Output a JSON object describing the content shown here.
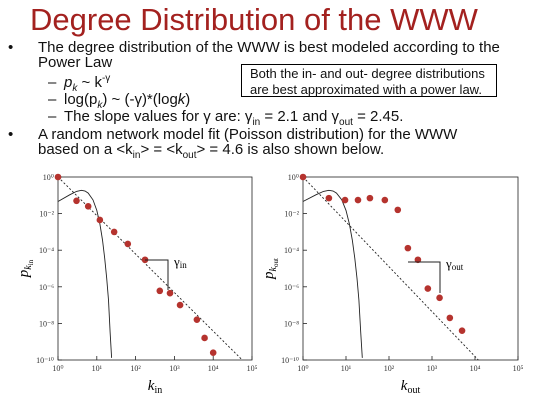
{
  "title": "Degree Distribution of the WWW",
  "bullets": [
    {
      "text": [
        "The degree distribution of the WWW is best modeled according to the Power Law"
      ],
      "sub": [
        [
          "p",
          "k",
          " ~ k",
          "-γ"
        ],
        [
          "log(p",
          "k",
          ") ~ (-γ)*(log",
          "k",
          ")"
        ],
        [
          "The slope values for γ are: γ",
          "in",
          " = 2.1 and γ",
          "out",
          " = 2.45."
        ]
      ]
    },
    {
      "text": [
        "A random network model fit (Poisson distribution) for the WWW based on a <k",
        "in",
        "> = <k",
        "out",
        "> = 4.6 is also shown below."
      ]
    }
  ],
  "callout": "Both the in- and out- degree distributions are best approximated with a power law.",
  "chart_data": [
    {
      "type": "scatter",
      "log_scale": true,
      "color": "#b5332e",
      "xlim": [
        1,
        100000
      ],
      "ylim": [
        1e-10,
        1
      ],
      "xticks": [
        {
          "value": 1,
          "label": "10⁰"
        },
        {
          "value": 10,
          "label": "10¹"
        },
        {
          "value": 100,
          "label": "10²"
        },
        {
          "value": 1000,
          "label": "10³"
        },
        {
          "value": 10000,
          "label": "10⁴"
        },
        {
          "value": 100000,
          "label": "10⁵"
        }
      ],
      "yticks": [
        {
          "value": 1,
          "label": "10⁰"
        },
        {
          "value": 0.01,
          "label": "10⁻²"
        },
        {
          "value": 0.0001,
          "label": "10⁻⁴"
        },
        {
          "value": 1e-06,
          "label": "10⁻⁶"
        },
        {
          "value": 1e-08,
          "label": "10⁻⁸"
        },
        {
          "value": 1e-10,
          "label": "10⁻¹⁰"
        }
      ],
      "xlabel": [
        "k",
        "in"
      ],
      "ylabel": [
        "p",
        "k",
        "in"
      ],
      "annotation": [
        "γ",
        "in"
      ],
      "x": [
        1,
        3,
        6,
        12,
        28,
        63,
        175,
        420,
        770,
        1400,
        3800,
        6000,
        10000
      ],
      "values": [
        1,
        0.05,
        0.025,
        0.0045,
        0.001,
        0.00022,
        3e-05,
        6e-07,
        4.5e-07,
        1e-07,
        1.6e-08,
        1.6e-09,
        2.5e-10
      ],
      "fit": {
        "x": [
          1,
          56234
        ],
        "values": [
          1,
          1e-10
        ]
      },
      "poisson": {
        "x": [
          1,
          2,
          3,
          4,
          5,
          6,
          8,
          10,
          12,
          14,
          16,
          18,
          20,
          22,
          24
        ],
        "values": [
          0.046,
          0.106,
          0.163,
          0.187,
          0.172,
          0.132,
          0.056,
          0.015,
          0.0027,
          0.00036,
          3.6e-05,
          2.9e-06,
          1.9e-07,
          3.4e-09,
          1.3e-10
        ]
      }
    },
    {
      "type": "scatter",
      "log_scale": true,
      "color": "#b5332e",
      "xlim": [
        1,
        100000
      ],
      "ylim": [
        1e-10,
        1
      ],
      "xticks": [
        {
          "value": 1,
          "label": "10⁰"
        },
        {
          "value": 10,
          "label": "10¹"
        },
        {
          "value": 100,
          "label": "10²"
        },
        {
          "value": 1000,
          "label": "10³"
        },
        {
          "value": 10000,
          "label": "10⁴"
        },
        {
          "value": 100000,
          "label": "10⁵"
        }
      ],
      "yticks": [
        {
          "value": 1,
          "label": "10⁰"
        },
        {
          "value": 0.01,
          "label": "10⁻²"
        },
        {
          "value": 0.0001,
          "label": "10⁻⁴"
        },
        {
          "value": 1e-06,
          "label": "10⁻⁶"
        },
        {
          "value": 1e-08,
          "label": "10⁻⁸"
        },
        {
          "value": 1e-10,
          "label": "10⁻¹⁰"
        }
      ],
      "xlabel": [
        "k",
        "out"
      ],
      "ylabel": [
        "p",
        "k",
        "out"
      ],
      "annotation": [
        "γ",
        "out"
      ],
      "x": [
        1,
        4,
        9.5,
        19,
        36,
        80,
        160,
        275,
        470,
        800,
        1500,
        2600,
        5000
      ],
      "values": [
        1,
        0.07,
        0.055,
        0.055,
        0.07,
        0.055,
        0.016,
        0.00013,
        3e-05,
        8e-07,
        2.5e-07,
        2e-08,
        4e-09
      ],
      "fit": {
        "x": [
          1,
          12000
        ],
        "values": [
          1,
          1e-10
        ]
      },
      "poisson": {
        "x": [
          1,
          2,
          3,
          4,
          5,
          6,
          8,
          10,
          12,
          14,
          16,
          18,
          20,
          22,
          24
        ],
        "values": [
          0.046,
          0.106,
          0.163,
          0.187,
          0.172,
          0.132,
          0.056,
          0.015,
          0.0027,
          0.00036,
          3.6e-05,
          2.9e-06,
          1.9e-07,
          3.4e-09,
          1.3e-10
        ]
      }
    }
  ]
}
